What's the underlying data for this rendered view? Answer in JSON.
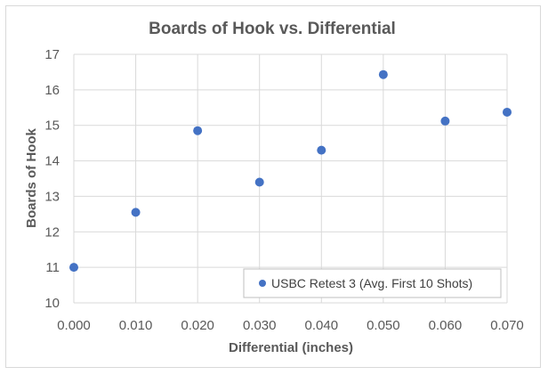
{
  "chart_data": {
    "type": "scatter",
    "title": "Boards of Hook vs. Differential",
    "xlabel": "Differential (inches)",
    "ylabel": "Boards of Hook",
    "xlim": [
      0.0,
      0.07
    ],
    "ylim": [
      10,
      17
    ],
    "x_ticks": [
      "0.000",
      "0.010",
      "0.020",
      "0.030",
      "0.040",
      "0.050",
      "0.060",
      "0.070"
    ],
    "y_ticks": [
      "10",
      "11",
      "12",
      "13",
      "14",
      "15",
      "16",
      "17"
    ],
    "grid": true,
    "legend_position": "bottom-right",
    "series": [
      {
        "name": "USBC Retest 3 (Avg. First 10 Shots)",
        "color": "#4472c4",
        "x": [
          0.0,
          0.01,
          0.02,
          0.03,
          0.04,
          0.05,
          0.06,
          0.07
        ],
        "y": [
          11.0,
          12.55,
          14.85,
          13.4,
          14.3,
          16.43,
          15.12,
          15.37
        ]
      }
    ]
  }
}
